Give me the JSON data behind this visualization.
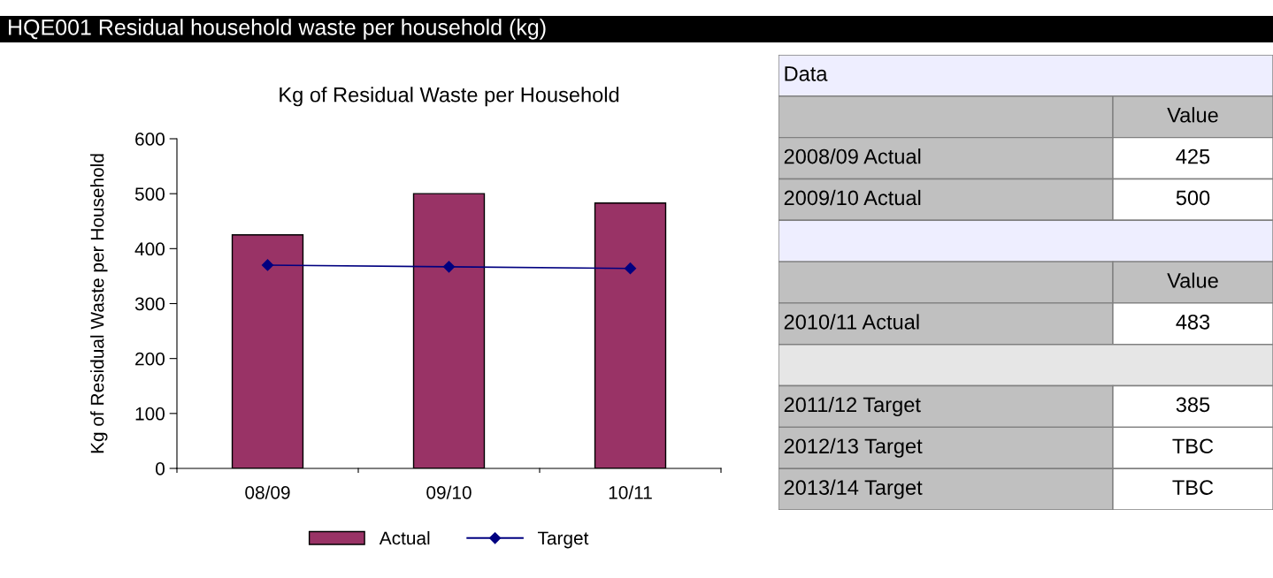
{
  "chart_data": [
    {
      "type": "bar",
      "title": "Kg of Residual Waste per Household",
      "ylabel": "Kg of Residual Waste per Household",
      "annotations": [
        "HQE001 Residual household waste per household (kg)"
      ],
      "categories": [
        "08/09",
        "09/10",
        "10/11"
      ],
      "series": [
        {
          "name": "Actual",
          "type": "bar",
          "color": "#993366",
          "values": [
            425,
            500,
            483
          ]
        },
        {
          "name": "Target",
          "type": "line",
          "color": "#000080",
          "marker": "diamond",
          "values": [
            370,
            367,
            364
          ]
        }
      ],
      "ylim": [
        0,
        600
      ],
      "yticks": [
        0,
        100,
        200,
        300,
        400,
        500,
        600
      ],
      "grid": false,
      "legend": "bottom"
    },
    {
      "type": "other",
      "title": "Data",
      "categories": [
        null,
        "2008/09 Actual",
        "2009/10 Actual",
        null,
        null,
        "2010/11 Actual",
        null,
        "2011/12 Target",
        "2012/13 Target",
        "2013/14 Target"
      ],
      "value_labels": [
        "Value",
        "425",
        "500",
        null,
        "Value",
        "483",
        null,
        "385",
        "TBC",
        "TBC"
      ],
      "colors": [
        "#c0c0c0",
        "#c0c0c0",
        "#c0c0c0",
        "#eeeeff",
        "#c0c0c0",
        "#c0c0c0",
        "#e6e6e6",
        "#c0c0c0",
        "#c0c0c0",
        "#c0c0c0"
      ]
    }
  ]
}
